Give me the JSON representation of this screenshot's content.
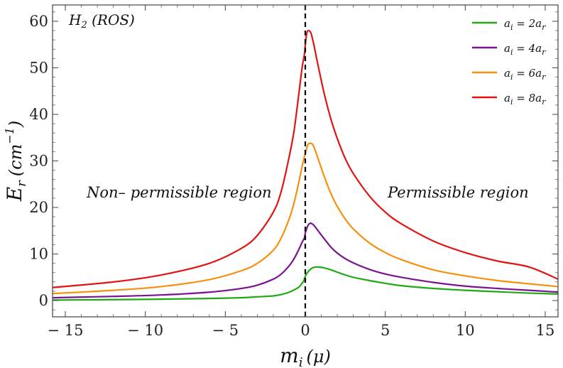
{
  "chart_data": {
    "type": "line",
    "title": "",
    "xlabel_main": "m",
    "xlabel_sub": "i",
    "xlabel_unit": "(μ)",
    "ylabel_main": "E",
    "ylabel_sub": "r",
    "ylabel_unit_open": "(cm",
    "ylabel_unit_sup": "−1",
    "ylabel_unit_close": ")",
    "xlim": [
      -15.8,
      15.8
    ],
    "ylim": [
      -3.5,
      63.5
    ],
    "xticks": [
      -15,
      -10,
      -5,
      0,
      5,
      10,
      15
    ],
    "xtick_labels": [
      "− 15",
      "− 10",
      "− 5",
      "0",
      "5",
      "10",
      "15"
    ],
    "yticks": [
      0,
      10,
      20,
      30,
      40,
      50,
      60
    ],
    "ytick_labels": [
      "0",
      "10",
      "20",
      "30",
      "40",
      "50",
      "60"
    ],
    "grid": false,
    "legend_position": "top-right",
    "vertical_line": {
      "x": 0,
      "style": "dashed",
      "color": "#000000"
    },
    "annotations": {
      "system_main": "H",
      "system_sub": "2",
      "system_rest": " (ROS)",
      "left_region": "Non– permissible region",
      "right_region": "Permissible region"
    },
    "series": [
      {
        "name": "a_i = 2a_r",
        "legend": {
          "lhs": "a",
          "lhs_sub": "i",
          "mid": " = 2a",
          "rhs_sub": "r"
        },
        "color": "#1faa14",
        "x": [
          -15.8,
          -12,
          -9,
          -6,
          -4,
          -3,
          -2,
          -1.5,
          -1,
          -0.7,
          -0.4,
          -0.25,
          -0.1,
          0,
          0.2,
          0.5,
          0.8,
          1.2,
          1.6,
          2,
          2.5,
          3,
          4,
          5,
          6,
          8,
          10,
          12,
          14,
          15.8
        ],
        "y": [
          0.1,
          0.2,
          0.3,
          0.45,
          0.6,
          0.8,
          1.0,
          1.3,
          1.8,
          2.3,
          2.9,
          3.5,
          4.2,
          5.2,
          6.3,
          7.1,
          7.2,
          7.0,
          6.6,
          6.1,
          5.5,
          5.0,
          4.3,
          3.7,
          3.2,
          2.6,
          2.2,
          1.9,
          1.6,
          1.4
        ]
      },
      {
        "name": "a_i = 4a_r",
        "legend": {
          "lhs": "a",
          "lhs_sub": "i",
          "mid": " = 4a",
          "rhs_sub": "r"
        },
        "color": "#7a1490",
        "x": [
          -15.8,
          -12,
          -9,
          -6,
          -4,
          -3,
          -2,
          -1.5,
          -1,
          -0.7,
          -0.4,
          -0.2,
          -0.05,
          0,
          0.15,
          0.3,
          0.5,
          0.8,
          1.2,
          1.6,
          2,
          2.5,
          3,
          4,
          5,
          6,
          8,
          10,
          12,
          14,
          15.8
        ],
        "y": [
          0.6,
          0.9,
          1.2,
          1.8,
          2.6,
          3.3,
          4.6,
          5.7,
          7.5,
          9.0,
          11.0,
          12.5,
          13.5,
          14.5,
          16.0,
          16.6,
          16.3,
          15.0,
          13.2,
          11.5,
          10.2,
          9.0,
          8.1,
          6.7,
          5.7,
          5.0,
          3.9,
          3.1,
          2.6,
          2.2,
          1.8
        ]
      },
      {
        "name": "a_i = 6a_r",
        "legend": {
          "lhs": "a",
          "lhs_sub": "i",
          "mid": " = 6a",
          "rhs_sub": "r"
        },
        "color": "#f7900f",
        "x": [
          -15.8,
          -12,
          -9,
          -6,
          -4,
          -3,
          -2,
          -1.5,
          -1,
          -0.7,
          -0.4,
          -0.2,
          -0.05,
          0,
          0.15,
          0.3,
          0.5,
          0.8,
          1.2,
          1.6,
          2,
          2.5,
          3,
          4,
          5,
          6,
          8,
          10,
          12,
          14,
          15.8
        ],
        "y": [
          1.5,
          2.2,
          3.0,
          4.5,
          6.4,
          8.0,
          10.8,
          13.5,
          17.6,
          21.0,
          25.5,
          28.8,
          31.0,
          31.5,
          33.4,
          33.8,
          33.3,
          30.5,
          26.5,
          23.0,
          20.2,
          17.5,
          15.4,
          12.4,
          10.3,
          8.8,
          6.6,
          5.3,
          4.3,
          3.6,
          3.0
        ]
      },
      {
        "name": "a_i = 8a_r",
        "legend": {
          "lhs": "a",
          "lhs_sub": "i",
          "mid": " = 8a",
          "rhs_sub": "r"
        },
        "color": "#e11313",
        "x": [
          -15.8,
          -12,
          -9,
          -6,
          -4,
          -3,
          -2,
          -1.5,
          -1,
          -0.7,
          -0.4,
          -0.2,
          -0.05,
          0,
          0.1,
          0.2,
          0.35,
          0.5,
          0.8,
          1.2,
          1.6,
          2,
          2.5,
          3,
          4,
          5,
          6,
          8,
          10,
          12,
          14,
          15.8
        ],
        "y": [
          2.8,
          4.0,
          5.5,
          8.0,
          11.2,
          14.0,
          19.0,
          23.5,
          31.0,
          36.5,
          44.5,
          50.0,
          53.0,
          55.0,
          57.5,
          58.0,
          57.5,
          55.5,
          50.5,
          44.2,
          39.0,
          34.8,
          30.5,
          27.3,
          22.5,
          19.0,
          16.5,
          12.8,
          10.3,
          8.5,
          7.2,
          4.6
        ]
      }
    ]
  }
}
